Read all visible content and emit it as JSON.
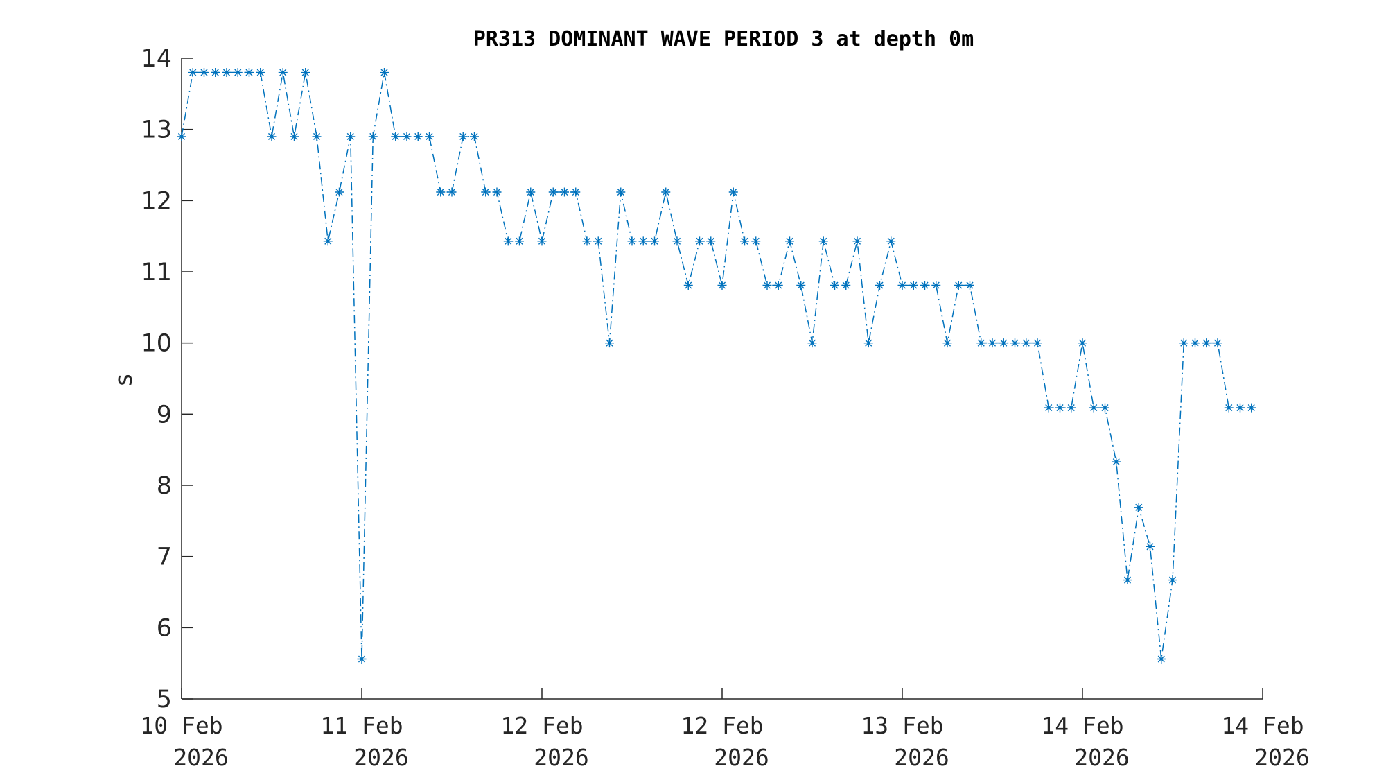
{
  "chart_data": {
    "type": "line",
    "title": "PR313 DOMINANT WAVE PERIOD 3 at depth 0m",
    "xlabel": "",
    "ylabel": "s",
    "ylim": [
      5,
      14
    ],
    "yticks": [
      5,
      6,
      7,
      8,
      9,
      10,
      11,
      12,
      13,
      14
    ],
    "xlim": [
      0,
      96
    ],
    "xticks": [
      {
        "pos": 0,
        "line1": "10 Feb",
        "line2": "2026"
      },
      {
        "pos": 16,
        "line1": "11 Feb",
        "line2": "2026"
      },
      {
        "pos": 32,
        "line1": "12 Feb",
        "line2": "2026"
      },
      {
        "pos": 48,
        "line1": "12 Feb",
        "line2": "2026"
      },
      {
        "pos": 64,
        "line1": "13 Feb",
        "line2": "2026"
      },
      {
        "pos": 80,
        "line1": "14 Feb",
        "line2": "2026"
      },
      {
        "pos": 96,
        "line1": "14 Feb",
        "line2": "2026"
      }
    ],
    "grid": false,
    "line_style": "dash-dot",
    "marker": "asterisk",
    "series": [
      {
        "color": "#0072BD",
        "values": [
          12.9,
          13.8,
          13.8,
          13.8,
          13.8,
          13.8,
          13.8,
          13.8,
          12.9,
          13.8,
          12.9,
          13.8,
          12.9,
          11.43,
          12.12,
          12.9,
          5.56,
          12.9,
          13.8,
          12.9,
          12.9,
          12.9,
          12.9,
          12.12,
          12.12,
          12.9,
          12.9,
          12.12,
          12.12,
          11.43,
          11.43,
          12.12,
          11.43,
          12.12,
          12.12,
          12.12,
          11.43,
          11.43,
          10.0,
          12.12,
          11.43,
          11.43,
          11.43,
          12.12,
          11.43,
          10.81,
          11.43,
          11.43,
          10.81,
          12.12,
          11.43,
          11.43,
          10.81,
          10.81,
          11.43,
          10.81,
          10.0,
          11.43,
          10.81,
          10.81,
          11.43,
          10.0,
          10.81,
          11.43,
          10.81,
          10.81,
          10.81,
          10.81,
          10.0,
          10.81,
          10.81,
          10.0,
          10.0,
          10.0,
          10.0,
          10.0,
          10.0,
          9.09,
          9.09,
          9.09,
          10.0,
          9.09,
          9.09,
          8.33,
          6.67,
          7.69,
          7.14,
          5.56,
          6.67,
          10.0,
          10.0,
          10.0,
          10.0,
          9.09,
          9.09,
          9.09
        ]
      }
    ]
  }
}
